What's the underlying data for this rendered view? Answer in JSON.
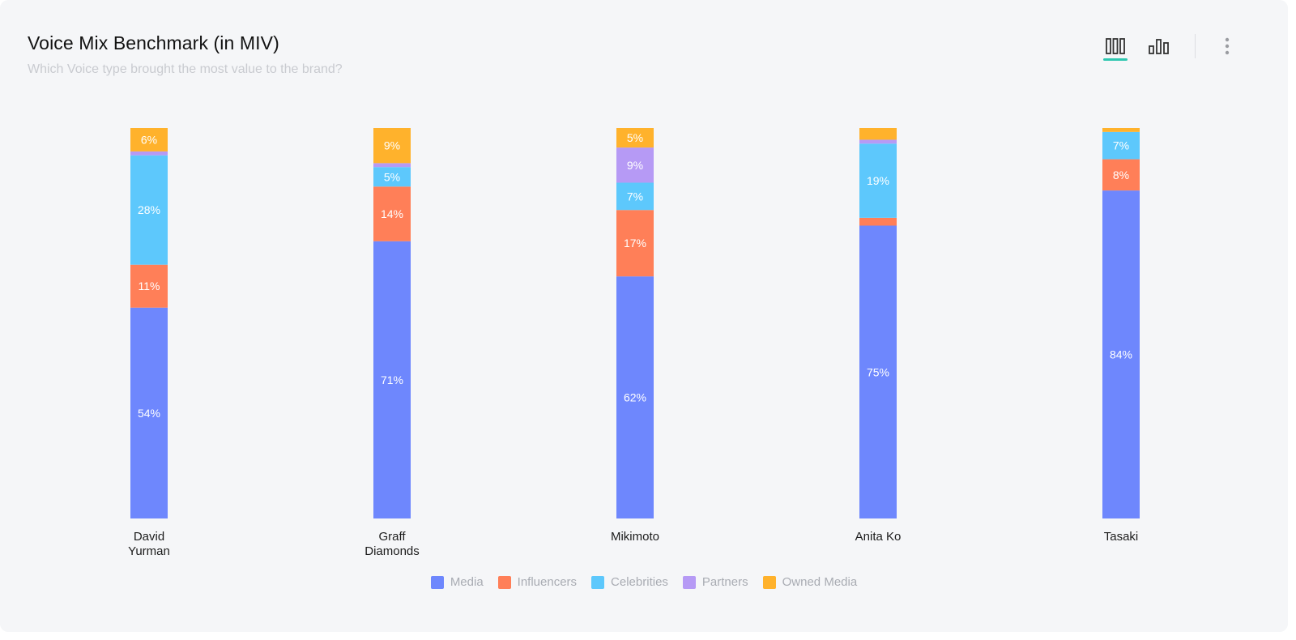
{
  "header": {
    "title": "Voice Mix Benchmark (in MIV)",
    "subtitle": "Which Voice type brought the most value to the brand?"
  },
  "toolbar": {
    "icons": [
      "stacked-bar-icon",
      "grouped-bar-icon",
      "more-vertical-icon"
    ],
    "accent": "#2ec7b0"
  },
  "chart_data": {
    "type": "bar",
    "stacked": true,
    "normalized_percent": true,
    "title": "Voice Mix Benchmark (in MIV)",
    "subtitle": "Which Voice type brought the most value to the brand?",
    "xlabel": "",
    "ylabel": "",
    "ylim": [
      0,
      100
    ],
    "categories": [
      [
        "David",
        "Yurman"
      ],
      [
        "Graff",
        "Diamonds"
      ],
      [
        "Mikimoto"
      ],
      [
        "Anita Ko"
      ],
      [
        "Tasaki"
      ]
    ],
    "series": [
      {
        "name": "Media",
        "color": "#6e87fd",
        "values": [
          54,
          71,
          62,
          75,
          84
        ],
        "labels": [
          "54%",
          "71%",
          "62%",
          "75%",
          "84%"
        ]
      },
      {
        "name": "Influencers",
        "color": "#ff7f58",
        "values": [
          11,
          14,
          17,
          2,
          8
        ],
        "labels": [
          "11%",
          "14%",
          "17%",
          "",
          "8%"
        ]
      },
      {
        "name": "Celebrities",
        "color": "#5dc8fc",
        "values": [
          28,
          5,
          7,
          19,
          7
        ],
        "labels": [
          "28%",
          "5%",
          "7%",
          "19%",
          "7%"
        ]
      },
      {
        "name": "Partners",
        "color": "#b69af5",
        "values": [
          1,
          1,
          9,
          1,
          0
        ],
        "labels": [
          "",
          "",
          "9%",
          "",
          ""
        ]
      },
      {
        "name": "Owned Media",
        "color": "#ffb22c",
        "values": [
          6,
          9,
          5,
          3,
          1
        ],
        "labels": [
          "6%",
          "9%",
          "5%",
          "",
          ""
        ]
      }
    ],
    "legend_position": "bottom-center",
    "grid": false
  }
}
